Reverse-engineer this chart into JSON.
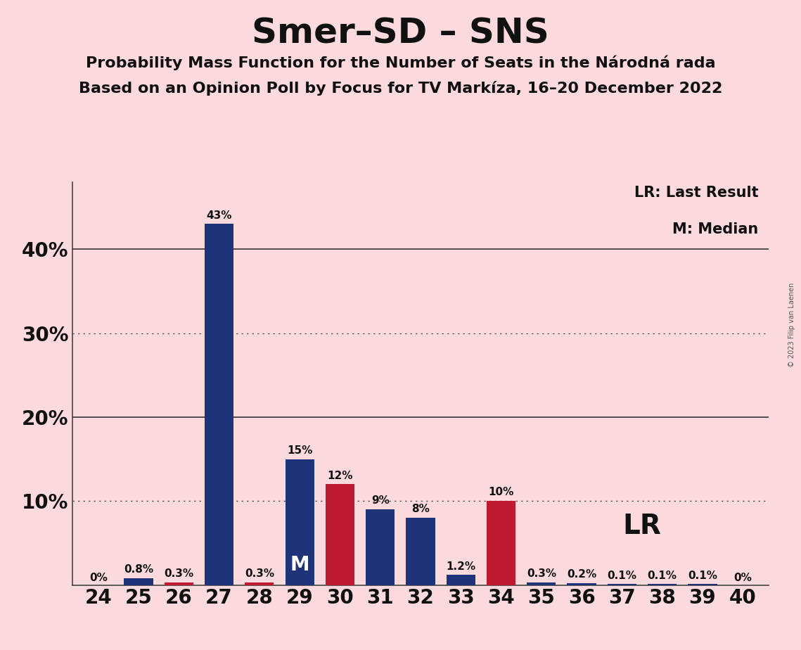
{
  "title": "Smer–SD – SNS",
  "subtitle1": "Probability Mass Function for the Number of Seats in the Národná rada",
  "subtitle2": "Based on an Opinion Poll by Focus for TV Markíza, 16–20 December 2022",
  "copyright": "© 2023 Filip van Laenen",
  "legend_lr": "LR: Last Result",
  "legend_m": "M: Median",
  "seats": [
    24,
    25,
    26,
    27,
    28,
    29,
    30,
    31,
    32,
    33,
    34,
    35,
    36,
    37,
    38,
    39,
    40
  ],
  "blue_values": [
    0,
    0.8,
    0.3,
    43,
    0.3,
    15,
    0,
    9,
    8,
    1.2,
    0,
    0.3,
    0.2,
    0.1,
    0.1,
    0.1,
    0
  ],
  "red_values": [
    0,
    0,
    0.3,
    0,
    0.3,
    0,
    12,
    0,
    0,
    0,
    10,
    0,
    0,
    0,
    0,
    0,
    0
  ],
  "blue_color": "#1f3478",
  "red_color": "#bf1932",
  "background_color": "#fadadd",
  "median_seat": 29,
  "lr_seat": 34,
  "ylim_max": 48,
  "ytick_positions": [
    0,
    10,
    20,
    30,
    40
  ],
  "ytick_labels": [
    "",
    "10%",
    "20%",
    "30%",
    "40%"
  ],
  "dotted_gridlines": [
    10,
    30
  ],
  "solid_gridlines": [
    20,
    40
  ],
  "bar_width": 0.72,
  "label_fontsize": 11,
  "tick_fontsize": 20,
  "title_fontsize": 36,
  "subtitle_fontsize": 16,
  "legend_fontsize": 15,
  "lr_label_fontsize": 28,
  "m_label_fontsize": 20
}
